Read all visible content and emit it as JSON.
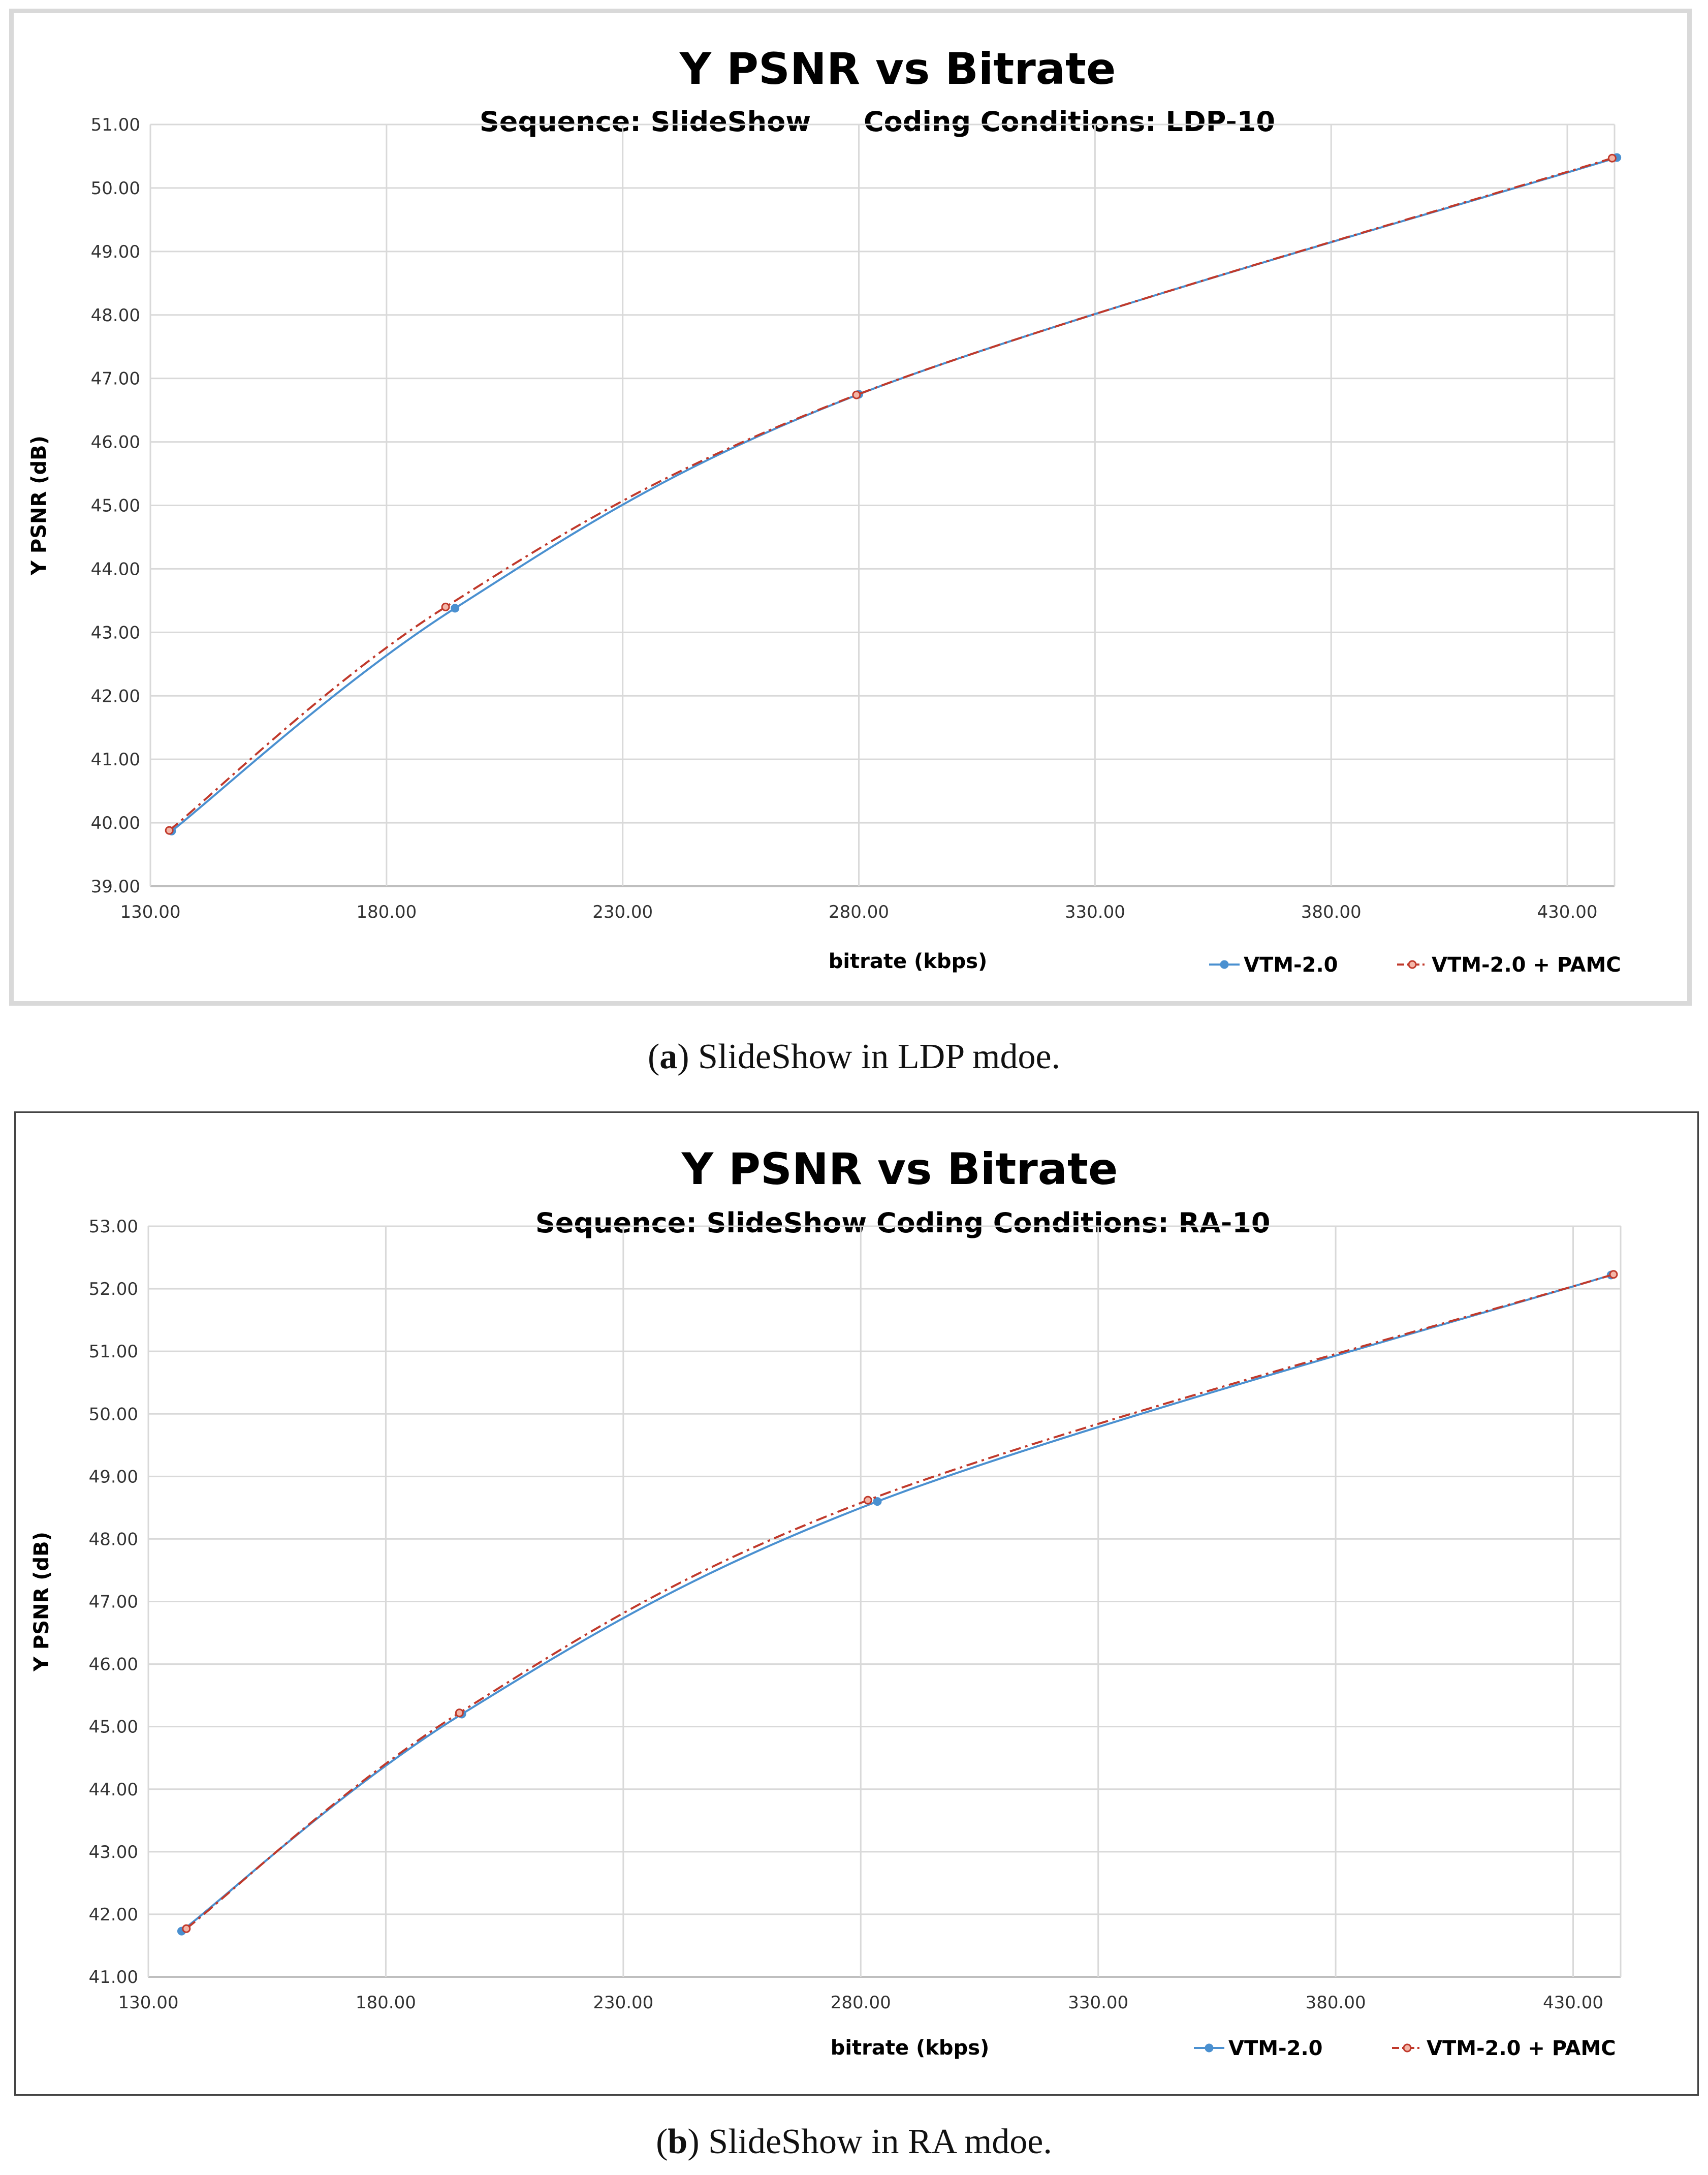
{
  "chart_data": [
    {
      "type": "line",
      "title": "Y PSNR vs Bitrate",
      "subtitle_sequence": "Sequence: SlideShow",
      "subtitle_conditions": "Coding Conditions: LDP-10",
      "xlabel": "bitrate (kbps)",
      "ylabel": "Y PSNR (dB)",
      "xlim": [
        130,
        440
      ],
      "ylim": [
        39,
        51
      ],
      "xticks": [
        "130.00",
        "180.00",
        "230.00",
        "280.00",
        "330.00",
        "380.00",
        "430.00"
      ],
      "yticks": [
        "39.00",
        "40.00",
        "41.00",
        "42.00",
        "43.00",
        "44.00",
        "45.00",
        "46.00",
        "47.00",
        "48.00",
        "49.00",
        "50.00",
        "51.00"
      ],
      "grid": true,
      "legend": "bottom-right",
      "series": [
        {
          "name": "VTM-2.0",
          "color": "#4a90d0",
          "x": [
            134.5,
            194.5,
            280.0,
            440.5
          ],
          "y": [
            39.87,
            43.38,
            46.75,
            50.48
          ]
        },
        {
          "name": "VTM-2.0 + PAMC",
          "color": "#c0392b",
          "x": [
            134.0,
            192.5,
            279.5,
            439.5
          ],
          "y": [
            39.88,
            43.4,
            46.74,
            50.47
          ]
        }
      ]
    },
    {
      "type": "line",
      "title": "Y PSNR vs Bitrate",
      "subtitle_sequence": "Sequence: SlideShow",
      "subtitle_conditions": "Coding Conditions: RA-10",
      "xlabel": "bitrate (kbps)",
      "ylabel": "Y PSNR (dB)",
      "xlim": [
        130,
        440
      ],
      "ylim": [
        41,
        53
      ],
      "xticks": [
        "130.00",
        "180.00",
        "230.00",
        "280.00",
        "330.00",
        "380.00",
        "430.00"
      ],
      "yticks": [
        "41.00",
        "42.00",
        "43.00",
        "44.00",
        "45.00",
        "46.00",
        "47.00",
        "48.00",
        "49.00",
        "50.00",
        "51.00",
        "52.00",
        "53.00"
      ],
      "grid": true,
      "legend": "bottom-right",
      "series": [
        {
          "name": "VTM-2.0",
          "color": "#4a90d0",
          "x": [
            137.0,
            196.0,
            283.5,
            438.0
          ],
          "y": [
            41.73,
            45.2,
            48.6,
            52.22
          ]
        },
        {
          "name": "VTM-2.0 + PAMC",
          "color": "#c0392b",
          "x": [
            138.0,
            195.5,
            281.5,
            438.5
          ],
          "y": [
            41.77,
            45.22,
            48.62,
            52.23
          ]
        }
      ]
    }
  ],
  "captions": [
    {
      "letter": "a",
      "text": ") SlideShow in LDP mdoe."
    },
    {
      "letter": "b",
      "text": ") SlideShow in RA mdoe."
    }
  ]
}
